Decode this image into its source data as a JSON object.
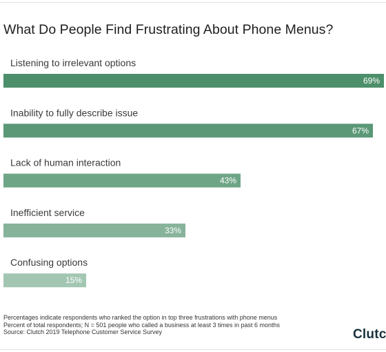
{
  "title": "What Do People Find Frustrating About Phone Menus?",
  "notes": [
    "Percentages indicate respondents who ranked the option in top three frustrations with phone menus",
    "Percent of total respondents; N = 501 people who called a business at least 3 times in past 6 months",
    "Source: Clutch 2019 Telephone Customer Service Survey"
  ],
  "logo_text": "Clutch",
  "colors": {
    "bar_shades": [
      "#4d8f6b",
      "#5a9877",
      "#6fa587",
      "#86b39a",
      "#a3c6b2"
    ],
    "value_label": "#ffffff"
  },
  "chart_data": {
    "type": "bar",
    "orientation": "horizontal",
    "title": "What Do People Find Frustrating About Phone Menus?",
    "categories": [
      "Listening to irrelevant options",
      "Inability to fully describe issue",
      "Lack of human interaction",
      "Inefficient service",
      "Confusing options"
    ],
    "values": [
      69,
      67,
      43,
      33,
      15
    ],
    "value_labels": [
      "69%",
      "67%",
      "43%",
      "33%",
      "15%"
    ],
    "unit": "%",
    "xlim": [
      0,
      69
    ],
    "grid": false,
    "legend": "none"
  }
}
